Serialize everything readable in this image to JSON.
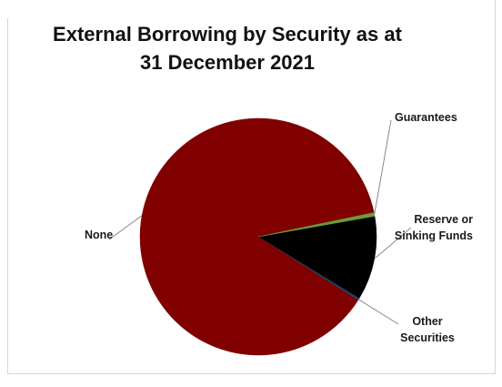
{
  "chart": {
    "title_line1": "External Borrowing by Security as at",
    "title_line2": "31 December 2021"
  },
  "chart_data": {
    "type": "pie",
    "title": "External Borrowing by Security as at 31 December 2021",
    "slices": [
      {
        "label": "Reserve or Sinking Funds",
        "value": 11.5,
        "color": "#000000"
      },
      {
        "label": "Other Securities",
        "value": 0.3,
        "color": "#1f3f6a"
      },
      {
        "label": "None",
        "value": 87.7,
        "color": "#800000"
      },
      {
        "label": "Guarantees",
        "value": 0.5,
        "color": "#6b9b3a"
      }
    ],
    "legend": "none (data labels with leader lines)"
  }
}
